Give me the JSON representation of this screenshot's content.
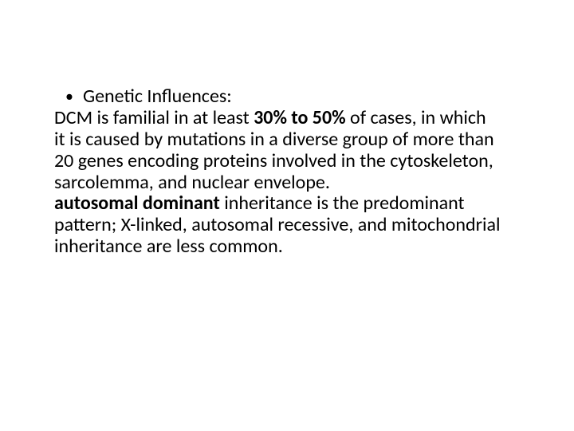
{
  "slide": {
    "background_color": "#ffffff",
    "text_color": "#000000",
    "font_family": "Calibri",
    "body_fontsize_pt": 24,
    "line_height": 1.12,
    "bullet": {
      "glyph": "•",
      "text": "Genetic Influences:"
    },
    "para1": {
      "seg1": "DCM is familial in at least ",
      "bold1": "30% to 50% ",
      "seg2": "of cases, in which it is caused by mutations in a diverse group of more than 20 genes encoding proteins involved in the cytoskeleton, sarcolemma, and nuclear envelope."
    },
    "para2": {
      "bold1": "autosomal dominant ",
      "seg1": "inheritance is the predominant pattern; X-linked, autosomal recessive, and mitochondrial inheritance are less common."
    }
  }
}
